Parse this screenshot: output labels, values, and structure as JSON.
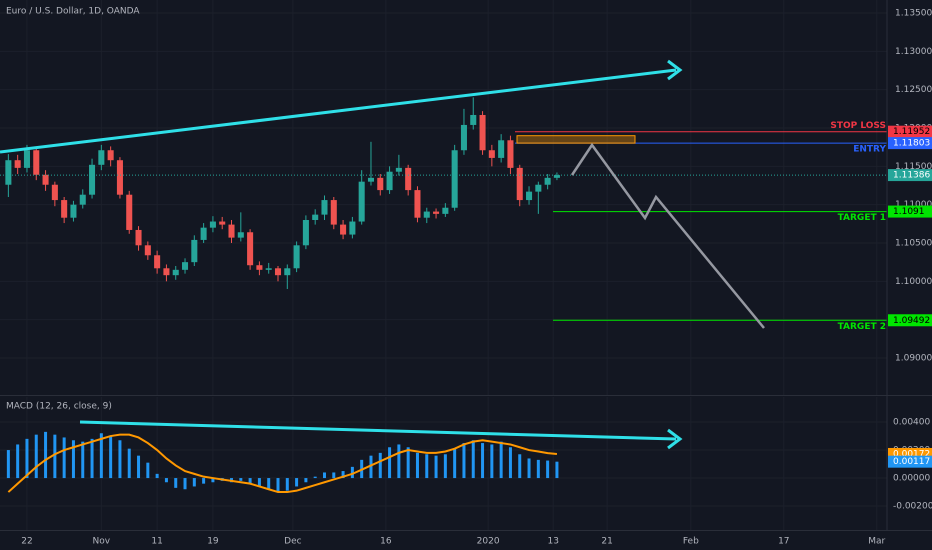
{
  "chart_data": [
    {
      "type": "candlestick",
      "title": "Euro / U.S. Dollar, 1D, OANDA",
      "up_color": "#26a69a",
      "down_color": "#ef5350",
      "grid": true,
      "open": [
        1.1126,
        1.1158,
        1.1148,
        1.1171,
        1.1139,
        1.1126,
        1.1106,
        1.1083,
        1.11,
        1.1113,
        1.1152,
        1.1171,
        1.1158,
        1.1113,
        1.1067,
        1.1047,
        1.1034,
        1.1017,
        1.1008,
        1.1015,
        1.1025,
        1.1054,
        1.107,
        1.1078,
        1.1074,
        1.1057,
        1.1064,
        1.1021,
        1.1015,
        1.1017,
        1.1008,
        1.1017,
        1.1047,
        1.108,
        1.1087,
        1.1106,
        1.1074,
        1.1061,
        1.1078,
        1.113,
        1.1135,
        1.1119,
        1.1143,
        1.1148,
        1.1119,
        1.1083,
        1.1091,
        1.1088,
        1.1096,
        1.1171,
        1.1204,
        1.1217,
        1.1171,
        1.1161,
        1.1184,
        1.1148,
        1.1106,
        1.1117,
        1.1126,
        1.1135
      ],
      "high": [
        1.1166,
        1.1165,
        1.1178,
        1.1175,
        1.1145,
        1.113,
        1.111,
        1.1105,
        1.112,
        1.116,
        1.1178,
        1.1176,
        1.1162,
        1.1118,
        1.1072,
        1.1052,
        1.104,
        1.1022,
        1.102,
        1.103,
        1.106,
        1.1076,
        1.1085,
        1.1084,
        1.108,
        1.109,
        1.1068,
        1.1026,
        1.1024,
        1.102,
        1.1022,
        1.1052,
        1.1086,
        1.1094,
        1.1112,
        1.111,
        1.108,
        1.1084,
        1.1145,
        1.1182,
        1.114,
        1.115,
        1.1165,
        1.1152,
        1.1124,
        1.1096,
        1.1095,
        1.1102,
        1.1178,
        1.1225,
        1.124,
        1.1222,
        1.1178,
        1.1192,
        1.119,
        1.1152,
        1.1124,
        1.113,
        1.114,
        1.1142
      ],
      "low": [
        1.111,
        1.114,
        1.1142,
        1.1132,
        1.1118,
        1.1098,
        1.1076,
        1.1078,
        1.1095,
        1.1108,
        1.1145,
        1.115,
        1.1108,
        1.1062,
        1.104,
        1.1028,
        1.101,
        1.1,
        1.1002,
        1.101,
        1.102,
        1.105,
        1.1064,
        1.1068,
        1.105,
        1.1052,
        1.1015,
        1.1008,
        1.101,
        1.1,
        1.099,
        1.1012,
        1.1042,
        1.1074,
        1.108,
        1.1068,
        1.1055,
        1.1056,
        1.1074,
        1.1125,
        1.1112,
        1.1114,
        1.1138,
        1.1112,
        1.1077,
        1.1076,
        1.1082,
        1.1084,
        1.1092,
        1.1165,
        1.1198,
        1.1165,
        1.115,
        1.1155,
        1.114,
        1.1098,
        1.11,
        1.1088,
        1.112,
        1.1132
      ],
      "close": [
        1.1158,
        1.1148,
        1.1171,
        1.1139,
        1.1126,
        1.1106,
        1.1083,
        1.11,
        1.1113,
        1.1152,
        1.1171,
        1.1158,
        1.1113,
        1.1067,
        1.1047,
        1.1034,
        1.1017,
        1.1008,
        1.1015,
        1.1025,
        1.1054,
        1.107,
        1.1078,
        1.1074,
        1.1057,
        1.1064,
        1.1021,
        1.1015,
        1.1017,
        1.1008,
        1.1017,
        1.1047,
        1.108,
        1.1087,
        1.1106,
        1.1074,
        1.1061,
        1.1078,
        1.113,
        1.1135,
        1.1119,
        1.1143,
        1.1148,
        1.1119,
        1.1083,
        1.1091,
        1.1088,
        1.1096,
        1.1171,
        1.1204,
        1.1217,
        1.1171,
        1.1161,
        1.1184,
        1.1148,
        1.1106,
        1.1117,
        1.1126,
        1.1135,
        1.11386
      ],
      "xlim": [
        -0.9,
        94.5
      ],
      "xticks": [
        {
          "value": 2,
          "label": "22"
        },
        {
          "value": 10,
          "label": "Nov"
        },
        {
          "value": 16,
          "label": "11"
        },
        {
          "value": 22,
          "label": "19"
        },
        {
          "value": 30.6,
          "label": "Dec"
        },
        {
          "value": 40.6,
          "label": "16"
        },
        {
          "value": 51.6,
          "label": "2020"
        },
        {
          "value": 58.6,
          "label": "13"
        },
        {
          "value": 64.4,
          "label": "21"
        },
        {
          "value": 73.4,
          "label": "Feb"
        },
        {
          "value": 83.4,
          "label": "17"
        },
        {
          "value": 93.4,
          "label": "Mar"
        }
      ],
      "ylim": [
        1.08517,
        1.1367
      ],
      "yticks": [
        {
          "value": 1.135,
          "label": "1.13500"
        },
        {
          "value": 1.13,
          "label": "1.13000"
        },
        {
          "value": 1.125,
          "label": "1.12500"
        },
        {
          "value": 1.12,
          "label": "1.12000"
        },
        {
          "value": 1.115,
          "label": "1.11500"
        },
        {
          "value": 1.11,
          "label": "1.11000"
        },
        {
          "value": 1.105,
          "label": "1.10500"
        },
        {
          "value": 1.1,
          "label": "1.10000"
        },
        {
          "value": 1.095,
          "label": "1.09500"
        },
        {
          "value": 1.09,
          "label": "1.09000"
        }
      ],
      "levels": [
        {
          "label": "STOP LOSS",
          "value": 1.11952,
          "color": "#f23645"
        },
        {
          "label": "ENTRY",
          "value": 1.11803,
          "color": "#2962ff"
        },
        {
          "label": "TARGET 1",
          "value": 1.1091,
          "color": "#00e600"
        },
        {
          "label": "TARGET 2",
          "value": 1.09492,
          "color": "#00e600"
        }
      ]
    },
    {
      "type": "macd",
      "title": "MACD (12, 26, close, 9)",
      "grid": true,
      "histogram": {
        "color": "#2196f3",
        "values": [
          0.002,
          0.0024,
          0.0028,
          0.0031,
          0.0033,
          0.0031,
          0.0029,
          0.0027,
          0.0026,
          0.0028,
          0.0032,
          0.003,
          0.0027,
          0.0021,
          0.0016,
          0.0011,
          0.0003,
          -0.0003,
          -0.0007,
          -0.0008,
          -0.0006,
          -0.0004,
          -0.0003,
          -0.0002,
          -0.0003,
          -0.0002,
          -0.0004,
          -0.0006,
          -0.0008,
          -0.001,
          -0.0009,
          -0.0006,
          -0.0003,
          0.0001,
          0.0004,
          0.0004,
          0.0005,
          0.0008,
          0.0013,
          0.0016,
          0.0018,
          0.0022,
          0.0024,
          0.0022,
          0.0018,
          0.0017,
          0.0016,
          0.0017,
          0.0021,
          0.0025,
          0.0027,
          0.0025,
          0.0024,
          0.0026,
          0.0022,
          0.0017,
          0.0014,
          0.0013,
          0.00125,
          0.00117
        ]
      },
      "macd_line": {
        "color": "#ff9800",
        "values": [
          -0.001,
          -0.0004,
          0.0002,
          0.0008,
          0.0013,
          0.0017,
          0.002,
          0.0022,
          0.0024,
          0.0026,
          0.0028,
          0.003,
          0.0031,
          0.0031,
          0.0029,
          0.0025,
          0.002,
          0.0014,
          0.0009,
          0.0005,
          0.0003,
          0.0001,
          0.0,
          -0.0001,
          -0.0002,
          -0.0003,
          -0.0004,
          -0.0006,
          -0.0008,
          -0.001,
          -0.001,
          -0.0009,
          -0.0007,
          -0.0005,
          -0.0003,
          -0.0001,
          0.0001,
          0.0003,
          0.0006,
          0.0009,
          0.0012,
          0.0015,
          0.0018,
          0.002,
          0.0019,
          0.0018,
          0.0018,
          0.0019,
          0.0021,
          0.0024,
          0.0026,
          0.0027,
          0.0026,
          0.0025,
          0.0024,
          0.0022,
          0.002,
          0.0019,
          0.00178,
          0.00172
        ]
      },
      "ylim": [
        -0.00371,
        0.00579
      ],
      "yticks": [
        {
          "value": 0.004,
          "label": "0.00400"
        },
        {
          "value": 0.002,
          "label": "0.00200"
        },
        {
          "value": 0,
          "label": "0.00000"
        },
        {
          "value": -0.002,
          "label": "-0.00200"
        }
      ]
    }
  ]
}
